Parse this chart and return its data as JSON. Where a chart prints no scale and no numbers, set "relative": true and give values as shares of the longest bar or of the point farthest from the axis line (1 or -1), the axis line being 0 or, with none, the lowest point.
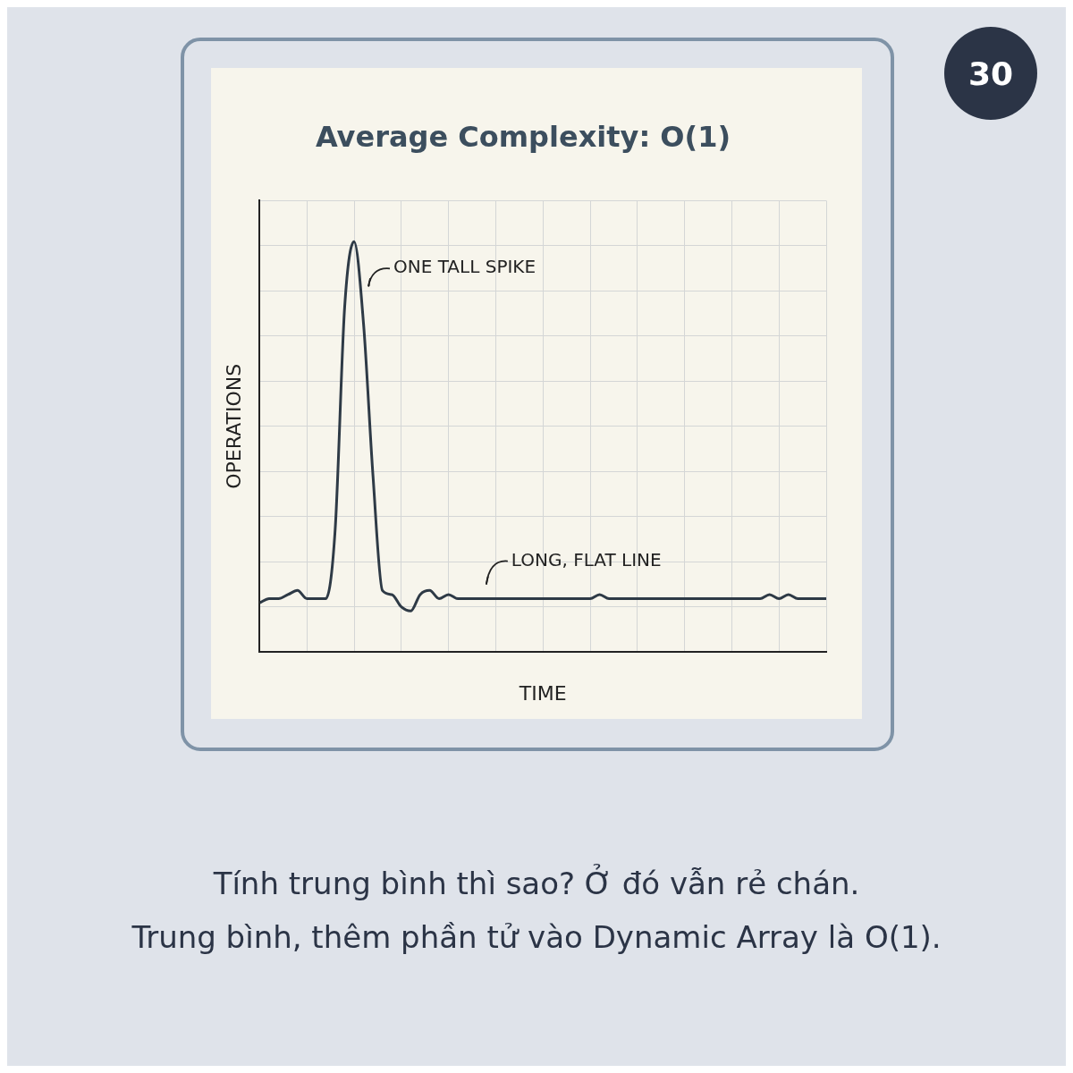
{
  "chart_data": {
    "type": "line",
    "title": "Average Complexity: O(1)",
    "xlabel": "TIME",
    "ylabel": "OPERATIONS",
    "relative": true,
    "grid": true,
    "marker": "none",
    "line_style": "solid",
    "categories": [
      null,
      null,
      null,
      null,
      null,
      null,
      null,
      null,
      null,
      null,
      null,
      null,
      null,
      null,
      null,
      null,
      null,
      null,
      null,
      null,
      null,
      null,
      null,
      null,
      null,
      null,
      null,
      null,
      null,
      null,
      null,
      null,
      null,
      null,
      null,
      null,
      null,
      null,
      null,
      null,
      null,
      null,
      null,
      null,
      null,
      null,
      null,
      null,
      null,
      null,
      null,
      null,
      null,
      null,
      null,
      null,
      null,
      null,
      null,
      null,
      null
    ],
    "series": [
      {
        "color": "#2e3a46",
        "values": [
          0.12,
          0.13,
          0.13,
          0.14,
          0.15,
          0.13,
          0.13,
          0.13,
          0.3,
          0.84,
          1.0,
          0.8,
          0.43,
          0.15,
          0.14,
          0.11,
          0.1,
          0.14,
          0.15,
          0.13,
          0.14,
          0.13,
          0.13,
          0.13,
          0.13,
          0.13,
          0.13,
          0.13,
          0.13,
          0.13,
          0.13,
          0.13,
          0.13,
          0.13,
          0.13,
          0.13,
          0.14,
          0.13,
          0.13,
          0.13,
          0.13,
          0.13,
          0.13,
          0.13,
          0.13,
          0.13,
          0.13,
          0.13,
          0.13,
          0.13,
          0.13,
          0.13,
          0.13,
          0.13,
          0.14,
          0.13,
          0.14,
          0.13,
          0.13,
          0.13,
          0.13
        ]
      }
    ],
    "annotations": [
      "ONE TALL SPIKE",
      "LONG, FLAT LINE",
      "30",
      "Tính trung bình thì sao? Ở đó vẫn rẻ chán.\nTrung bình, thêm phần tử vào Dynamic Array là O(1)."
    ]
  }
}
